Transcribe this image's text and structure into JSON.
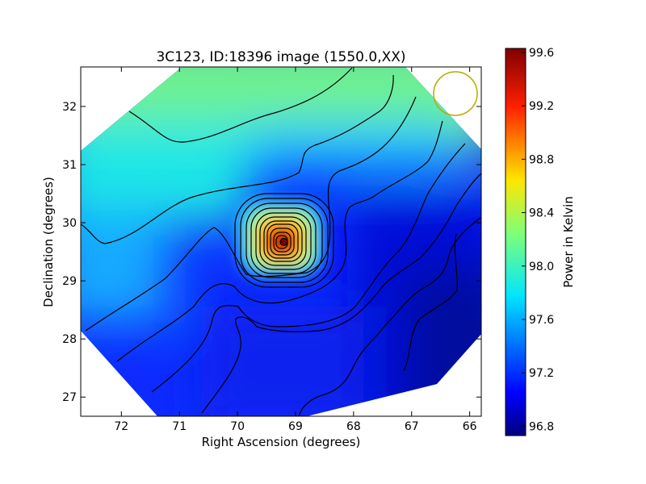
{
  "chart_data": {
    "type": "heatmap",
    "title": "3C123, ID:18396 image (1550.0,XX)",
    "xlabel": "Right Ascension (degrees)",
    "ylabel": "Declination (degrees)",
    "xlim": [
      72.7,
      65.8
    ],
    "ylim": [
      26.67,
      32.68
    ],
    "x_ticks": [
      72,
      71,
      70,
      69,
      68,
      67,
      66
    ],
    "y_ticks": [
      27,
      28,
      29,
      30,
      31,
      32
    ],
    "colorbar": {
      "label": "Power in Kelvin",
      "range": [
        96.73,
        99.63
      ],
      "ticks": [
        96.8,
        97.2,
        97.6,
        98.0,
        98.4,
        98.8,
        99.2,
        99.6
      ],
      "colormap": "jet"
    },
    "peak": {
      "ra": 69.2,
      "dec": 29.67,
      "value": 99.6
    },
    "field_values": {
      "north_west": 97.9,
      "west": 97.7,
      "south_west": 97.2,
      "center": 97.3,
      "east": 97.1,
      "south_east": 96.8
    },
    "contours": "black",
    "beam_marker": {
      "shape": "circle",
      "color": "#b8a800",
      "position": "top-right"
    },
    "grid": false
  }
}
